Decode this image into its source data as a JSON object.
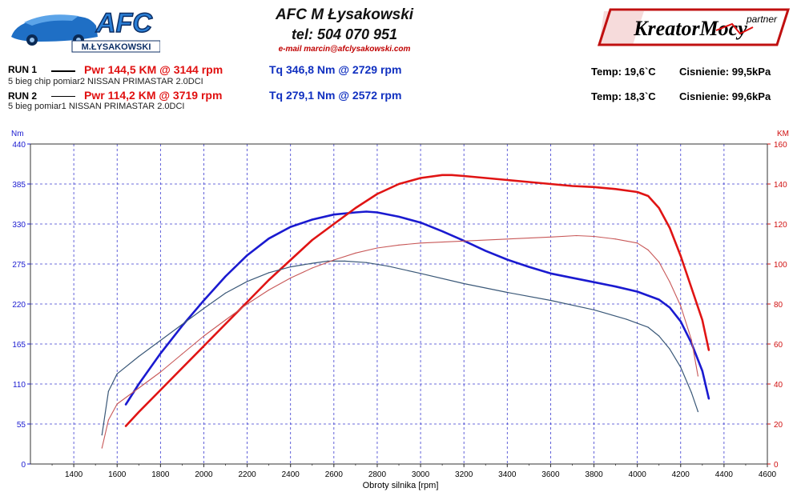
{
  "header": {
    "logo_text": "AFC",
    "logo_subtext": "M.ŁYSAKOWSKI",
    "company": "AFC M Łysakowski",
    "phone": "tel: 504 070 951",
    "email": "e-mail marcin@afclysakowski.com",
    "partner_logo": "KreatorMocy",
    "partner_label": "partner"
  },
  "runs": [
    {
      "label": "RUN 1",
      "description": "5 bieg chip pomiar2 NISSAN PRIMASTAR 2.0DCI",
      "power": "Pwr  144,5 KM @ 3144 rpm",
      "torque": "Tq 346,8 Nm @ 2729 rpm",
      "temp": "Temp: 19,6`C",
      "pressure": "Cisnienie: 99,5kPa",
      "line_style": "thick"
    },
    {
      "label": "RUN 2",
      "description": "5 bieg pomiar1 NISSAN PRIMASTAR 2.0DCI",
      "power": "Pwr  114,2 KM @ 3719 rpm",
      "torque": "Tq 279,1 Nm @ 2572 rpm",
      "temp": "Temp: 18,3`C",
      "pressure": "Cisnienie: 99,6kPa",
      "line_style": "thin"
    }
  ],
  "chart_data": {
    "type": "line",
    "xlabel": "Obroty silnika [rpm]",
    "ylabel_left": "Nm",
    "ylabel_right": "KM",
    "xlim": [
      1200,
      4600
    ],
    "ylim_left": [
      0,
      440
    ],
    "ylim_right": [
      0,
      160
    ],
    "x_ticks": [
      "1400",
      "1600",
      "1800",
      "2000",
      "2200",
      "2400",
      "2600",
      "2800",
      "3000",
      "3200",
      "3400",
      "3600",
      "3800",
      "4000",
      "4200",
      "4400",
      "4600"
    ],
    "y_left_ticks": [
      "0",
      "55",
      "110",
      "165",
      "220",
      "275",
      "330",
      "385",
      "440"
    ],
    "y_right_ticks": [
      "0",
      "20",
      "40",
      "60",
      "80",
      "100",
      "120",
      "140",
      "160"
    ],
    "grid": true,
    "series": [
      {
        "name": "RUN 1 Tq",
        "axis": "left",
        "color": "#1a1ad0",
        "width": 2.6,
        "x": [
          1640,
          1700,
          1800,
          1900,
          2000,
          2100,
          2200,
          2300,
          2400,
          2500,
          2600,
          2700,
          2750,
          2800,
          2900,
          3000,
          3100,
          3200,
          3300,
          3400,
          3500,
          3600,
          3700,
          3800,
          3900,
          4000,
          4100,
          4150,
          4200,
          4250,
          4300,
          4330
        ],
        "y": [
          82,
          110,
          152,
          190,
          225,
          258,
          287,
          310,
          326,
          336,
          343,
          346,
          347,
          346,
          340,
          332,
          320,
          307,
          293,
          281,
          271,
          262,
          256,
          250,
          244,
          237,
          226,
          215,
          196,
          166,
          128,
          90
        ]
      },
      {
        "name": "RUN 1 Pwr",
        "axis": "right",
        "color": "#e01414",
        "width": 2.6,
        "x": [
          1640,
          1700,
          1800,
          1900,
          2000,
          2100,
          2200,
          2300,
          2400,
          2500,
          2600,
          2700,
          2800,
          2900,
          3000,
          3100,
          3144,
          3200,
          3300,
          3400,
          3500,
          3600,
          3700,
          3800,
          3900,
          4000,
          4050,
          4100,
          4150,
          4200,
          4250,
          4300,
          4330
        ],
        "y": [
          19,
          26,
          37,
          48,
          59,
          70,
          81,
          92,
          102,
          112,
          120,
          128,
          135,
          140,
          143,
          144.5,
          144.5,
          144,
          143,
          142,
          141,
          140,
          139,
          138.5,
          137.5,
          136,
          134,
          128,
          118,
          104,
          88,
          72,
          57
        ]
      },
      {
        "name": "RUN 2 Tq",
        "axis": "left",
        "color": "#3a5878",
        "width": 1.2,
        "x": [
          1530,
          1560,
          1600,
          1700,
          1800,
          1900,
          2000,
          2100,
          2200,
          2300,
          2400,
          2500,
          2572,
          2650,
          2750,
          2850,
          3000,
          3200,
          3400,
          3600,
          3800,
          3950,
          4050,
          4100,
          4150,
          4200,
          4250,
          4280
        ],
        "y": [
          40,
          100,
          124,
          148,
          170,
          192,
          214,
          235,
          251,
          263,
          271,
          276,
          279,
          279,
          277,
          272,
          262,
          248,
          236,
          225,
          212,
          199,
          188,
          176,
          158,
          133,
          98,
          72
        ]
      },
      {
        "name": "RUN 2 Pwr",
        "axis": "right",
        "color": "#c85858",
        "width": 1.1,
        "x": [
          1530,
          1560,
          1600,
          1700,
          1800,
          1900,
          2000,
          2100,
          2200,
          2300,
          2400,
          2500,
          2600,
          2700,
          2800,
          2900,
          3000,
          3200,
          3400,
          3600,
          3719,
          3800,
          3900,
          4000,
          4050,
          4100,
          4150,
          4200,
          4250,
          4280
        ],
        "y": [
          8,
          22,
          30,
          38,
          46,
          55,
          64,
          72,
          80,
          87,
          93,
          98,
          102,
          105.5,
          108,
          109.5,
          110.5,
          111.5,
          112.5,
          113.5,
          114.2,
          113.8,
          112.5,
          110.5,
          107,
          101,
          91,
          79,
          62,
          44
        ]
      }
    ]
  }
}
